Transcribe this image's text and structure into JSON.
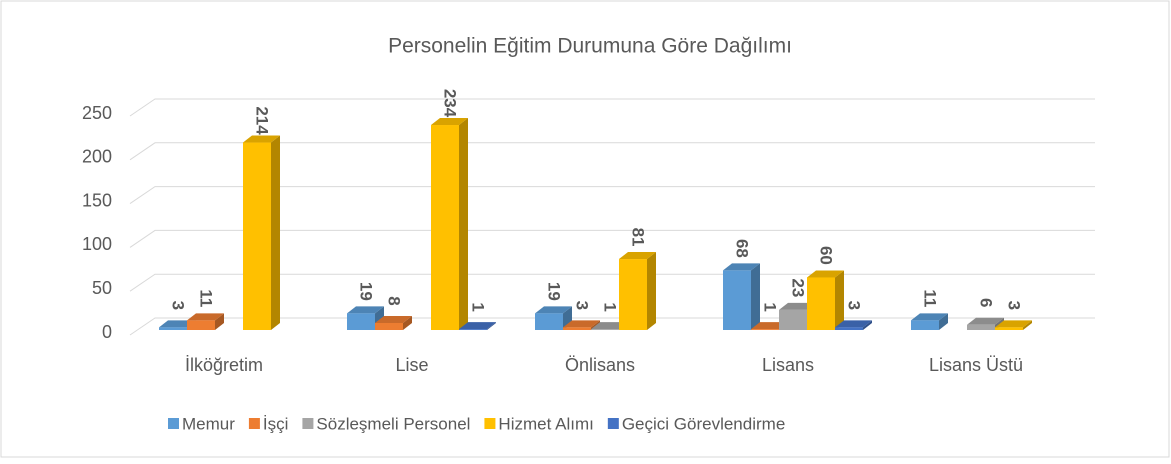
{
  "chart_data": {
    "type": "bar3d",
    "title": "Personelin Eğitim Durumuna Göre Dağılımı",
    "categories": [
      "İlköğretim",
      "Lise",
      "Önlisans",
      "Lisans",
      "Lisans Üstü"
    ],
    "series": [
      {
        "name": "Memur",
        "color": "#5b9bd5",
        "values": [
          3,
          19,
          19,
          68,
          11
        ]
      },
      {
        "name": "İşçi",
        "color": "#ed7d31",
        "values": [
          11,
          8,
          3,
          1,
          null
        ]
      },
      {
        "name": "Sözleşmeli Personel",
        "color": "#a5a5a5",
        "values": [
          null,
          null,
          1,
          23,
          6
        ]
      },
      {
        "name": "Hizmet Alımı",
        "color": "#ffc000",
        "values": [
          214,
          234,
          81,
          60,
          3
        ]
      },
      {
        "name": "Geçici Görevlendirme",
        "color": "#4472c4",
        "values": [
          null,
          1,
          null,
          3,
          null
        ]
      }
    ],
    "ylim": [
      0,
      250
    ],
    "yticks": [
      0,
      50,
      100,
      150,
      200,
      250
    ],
    "grid": true,
    "legend": "bottom"
  }
}
